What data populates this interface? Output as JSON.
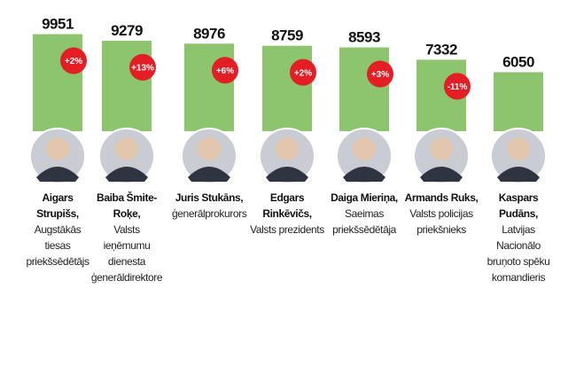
{
  "chart_data": {
    "type": "bar",
    "categories": [
      "Aigars Strupišs,",
      "Baiba Šmite-Roķe,",
      "Juris Stukāns,",
      "Edgars Rinkēvičs,",
      "Daiga Mieriņa,",
      "Armands Ruks,",
      "Kaspars Pudāns,"
    ],
    "roles": [
      "Augstākās tiesas priekšsēdētājs",
      "Valsts ieņēmumu dienesta ģenerāldirektore",
      "ģenerālprokurors",
      "Valsts prezidents",
      "Saeimas priekšsēdētāja",
      "Valsts policijas priekšnieks",
      "Latvijas Nacionālo bruņoto spēku komandieris"
    ],
    "values": [
      9951,
      9279,
      8976,
      8759,
      8593,
      7332,
      6050
    ],
    "changes": [
      2,
      13,
      6,
      2,
      3,
      -11,
      null
    ],
    "change_labels": [
      "+2%",
      "+13%",
      "+6%",
      "+2%",
      "+3%",
      "-11%",
      null
    ],
    "color": "#8dc46e",
    "badge_color": "#e31e24",
    "ylim": [
      0,
      10000
    ]
  }
}
